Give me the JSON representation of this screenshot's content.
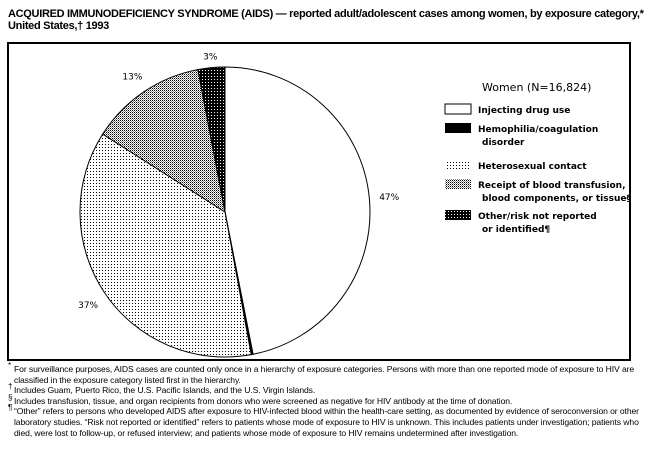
{
  "title": "ACQUIRED IMMUNODEFICIENCY SYNDROME (AIDS) — reported adult/adolescent cases among women, by exposure category,* United States,† 1993",
  "chart_data": {
    "type": "pie",
    "title": "ACQUIRED IMMUNODEFICIENCY SYNDROME (AIDS) — reported adult/adolescent cases among women, by exposure category,* United States,† 1993",
    "legend_title": "Women (N=16,824)",
    "legend_placement": "right",
    "start": "top, clockwise",
    "slices": [
      {
        "name": "Injecting drug use",
        "value": 47,
        "label": "47%",
        "pattern": "white"
      },
      {
        "name": "Hemophilia/coagulation disorder",
        "value": 0.2,
        "label": "",
        "pattern": "black"
      },
      {
        "name": "Heterosexual contact",
        "value": 37,
        "label": "37%",
        "pattern": "light-dots"
      },
      {
        "name": "Receipt of blood transfusion, blood components, or tissue§",
        "value": 13,
        "label": "13%",
        "pattern": "medium-dots"
      },
      {
        "name": "Other/risk not reported or identified¶",
        "value": 3,
        "label": "3%",
        "pattern": "dark-grid"
      }
    ],
    "legend_lines": [
      [
        "Injecting drug use"
      ],
      [
        "Hemophilia/coagulation",
        "disorder"
      ],
      [
        "Heterosexual contact"
      ],
      [
        "Receipt of blood transfusion,",
        "blood components, or tissue§"
      ],
      [
        "Other/risk not reported",
        "or identified¶"
      ]
    ]
  },
  "footnotes": [
    {
      "mark": "*",
      "text": "For surveillance purposes, AIDS cases are counted only once in a hierarchy of exposure categories. Persons with more than one reported mode of exposure to HIV are classified in the exposure category listed first in the hierarchy."
    },
    {
      "mark": "†",
      "text": "Includes Guam, Puerto Rico, the U.S. Pacific Islands, and the U.S. Virgin Islands."
    },
    {
      "mark": "§",
      "text": "Includes transfusion, tissue, and organ recipients from donors who were screened as negative for HIV antibody at the time of donation."
    },
    {
      "mark": "¶",
      "text": "“Other” refers to persons who developed AIDS after exposure to HIV-infected blood within the health-care setting, as documented by evidence of seroconversion or other laboratory studies. “Risk not reported or identified” refers to patients whose mode of exposure to HIV is unknown. This includes patients under investigation; patients who died, were lost to follow-up, or refused interview; and patients whose mode of exposure to HIV remains undetermined after investigation."
    }
  ]
}
